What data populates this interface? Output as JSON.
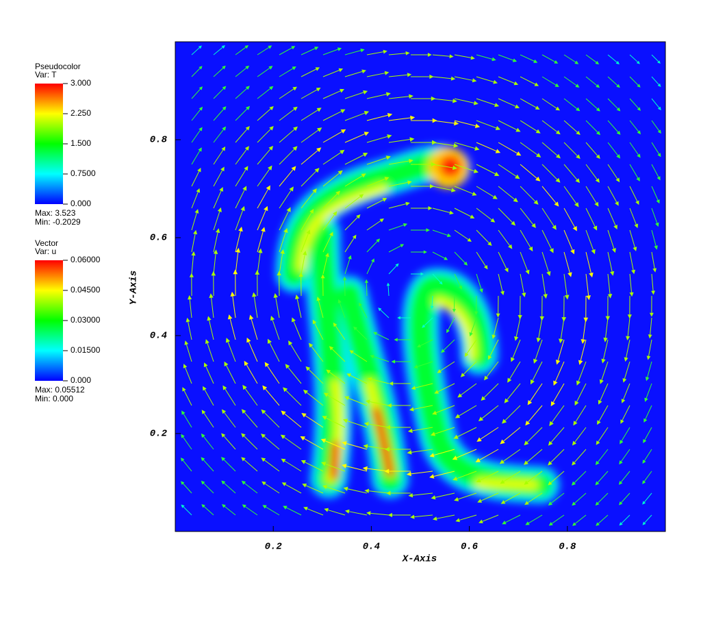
{
  "chart_data": {
    "type": "pseudocolor",
    "xlabel": "X-Axis",
    "ylabel": "Y-Axis",
    "xlim": [
      0,
      1
    ],
    "ylim": [
      0,
      1
    ],
    "xticks": [
      0.2,
      0.4,
      0.6,
      0.8
    ],
    "yticks": [
      0.2,
      0.4,
      0.6,
      0.8
    ],
    "legends": [
      {
        "title": "Pseudocolor",
        "var": "Var: T",
        "range": [
          0,
          3
        ],
        "ticks": [
          {
            "value": 3,
            "label": "3.000"
          },
          {
            "value": 2.25,
            "label": "2.250"
          },
          {
            "value": 1.5,
            "label": "1.500"
          },
          {
            "value": 0.75,
            "label": "0.7500"
          },
          {
            "value": 0,
            "label": "0.000"
          }
        ],
        "max": "Max:  3.523",
        "min": "Min: -0.2029"
      },
      {
        "title": "Vector",
        "var": "Var: u",
        "range": [
          0,
          0.06
        ],
        "ticks": [
          {
            "value": 0.06,
            "label": "0.06000"
          },
          {
            "value": 0.045,
            "label": "0.04500"
          },
          {
            "value": 0.03,
            "label": "0.03000"
          },
          {
            "value": 0.015,
            "label": "0.01500"
          },
          {
            "value": 0,
            "label": "0.000"
          }
        ],
        "max": "Max:  0.05512",
        "min": "Min:  0.000"
      }
    ]
  }
}
